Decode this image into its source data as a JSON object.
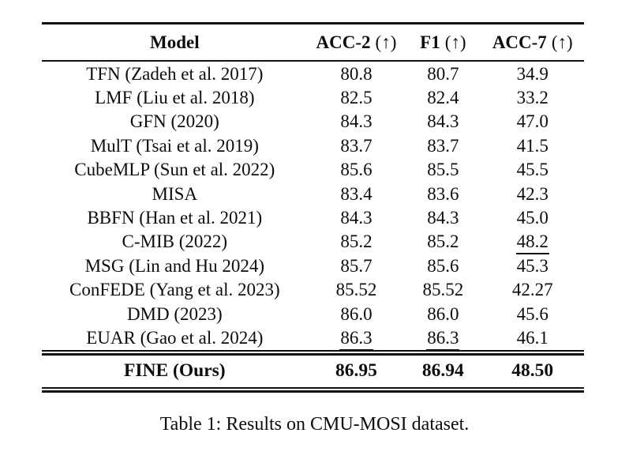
{
  "ink_color": "#111111",
  "background_color": "#ffffff",
  "table": {
    "columns": [
      {
        "label": "Model",
        "arrow": ""
      },
      {
        "label": "ACC-2",
        "arrow": "(↑)"
      },
      {
        "label": "F1",
        "arrow": "(↑)"
      },
      {
        "label": "ACC-7",
        "arrow": "(↑)"
      }
    ],
    "rows": [
      {
        "model": "TFN (Zadeh et al. 2017)",
        "acc2": "80.8",
        "f1": "80.7",
        "acc7": "34.9",
        "underline": []
      },
      {
        "model": "LMF (Liu et al. 2018)",
        "acc2": "82.5",
        "f1": "82.4",
        "acc7": "33.2",
        "underline": []
      },
      {
        "model": "GFN (2020)",
        "acc2": "84.3",
        "f1": "84.3",
        "acc7": "47.0",
        "underline": []
      },
      {
        "model": "MulT (Tsai et al. 2019)",
        "acc2": "83.7",
        "f1": "83.7",
        "acc7": "41.5",
        "underline": []
      },
      {
        "model": "CubeMLP (Sun et al. 2022)",
        "acc2": "85.6",
        "f1": "85.5",
        "acc7": "45.5",
        "underline": []
      },
      {
        "model": "MISA",
        "acc2": "83.4",
        "f1": "83.6",
        "acc7": "42.3",
        "underline": []
      },
      {
        "model": "BBFN (Han et al. 2021)",
        "acc2": "84.3",
        "f1": "84.3",
        "acc7": "45.0",
        "underline": []
      },
      {
        "model": "C-MIB (2022)",
        "acc2": "85.2",
        "f1": "85.2",
        "acc7": "48.2",
        "underline": [
          "acc7"
        ]
      },
      {
        "model": "MSG (Lin and Hu 2024)",
        "acc2": "85.7",
        "f1": "85.6",
        "acc7": "45.3",
        "underline": []
      },
      {
        "model": "ConFEDE (Yang et al. 2023)",
        "acc2": "85.52",
        "f1": "85.52",
        "acc7": "42.27",
        "underline": []
      },
      {
        "model": "DMD (2023)",
        "acc2": "86.0",
        "f1": "86.0",
        "acc7": "45.6",
        "underline": []
      },
      {
        "model": "EUAR (Gao et al. 2024)",
        "acc2": "86.3",
        "f1": "86.3",
        "acc7": "46.1",
        "underline": [
          "acc2",
          "f1"
        ]
      }
    ],
    "final_row": {
      "model": "FINE (Ours)",
      "acc2": "86.95",
      "f1": "86.94",
      "acc7": "48.50"
    }
  },
  "caption": "Table 1: Results on CMU-MOSI dataset."
}
